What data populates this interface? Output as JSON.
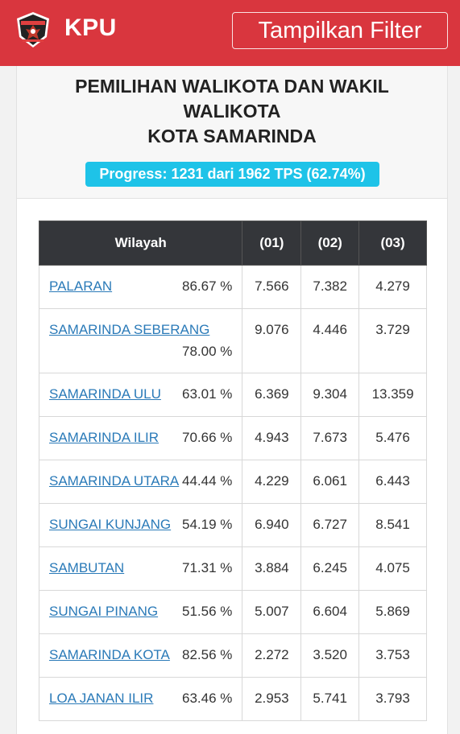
{
  "header": {
    "brand": "KPU",
    "filter_label": "Tampilkan Filter",
    "logo_icon": "kpu-logo-icon",
    "color": "#d9363e"
  },
  "election": {
    "title_lines": [
      "PEMILIHAN WALIKOTA DAN WAKIL",
      "WALIKOTA",
      "KOTA SAMARINDA"
    ],
    "progress_text": "Progress: 1231 dari 1962 TPS (62.74%)",
    "progress_color": "#1ec3e8"
  },
  "table": {
    "headers": [
      "Wilayah",
      "(01)",
      "(02)",
      "(03)"
    ],
    "rows": [
      {
        "wilayah": "PALARAN",
        "pct": "86.67 %",
        "c1": "7.566",
        "c2": "7.382",
        "c3": "4.279"
      },
      {
        "wilayah": "SAMARINDA SEBERANG",
        "pct": "78.00 %",
        "c1": "9.076",
        "c2": "4.446",
        "c3": "3.729"
      },
      {
        "wilayah": "SAMARINDA ULU",
        "pct": "63.01 %",
        "c1": "6.369",
        "c2": "9.304",
        "c3": "13.359"
      },
      {
        "wilayah": "SAMARINDA ILIR",
        "pct": "70.66 %",
        "c1": "4.943",
        "c2": "7.673",
        "c3": "5.476"
      },
      {
        "wilayah": "SAMARINDA UTARA",
        "pct": "44.44 %",
        "c1": "4.229",
        "c2": "6.061",
        "c3": "6.443"
      },
      {
        "wilayah": "SUNGAI KUNJANG",
        "pct": "54.19 %",
        "c1": "6.940",
        "c2": "6.727",
        "c3": "8.541"
      },
      {
        "wilayah": "SAMBUTAN",
        "pct": "71.31 %",
        "c1": "3.884",
        "c2": "6.245",
        "c3": "4.075"
      },
      {
        "wilayah": "SUNGAI PINANG",
        "pct": "51.56 %",
        "c1": "5.007",
        "c2": "6.604",
        "c3": "5.869"
      },
      {
        "wilayah": "SAMARINDA KOTA",
        "pct": "82.56 %",
        "c1": "2.272",
        "c2": "3.520",
        "c3": "3.753"
      },
      {
        "wilayah": "LOA JANAN ILIR",
        "pct": "63.46 %",
        "c1": "2.953",
        "c2": "5.741",
        "c3": "3.793"
      }
    ]
  }
}
